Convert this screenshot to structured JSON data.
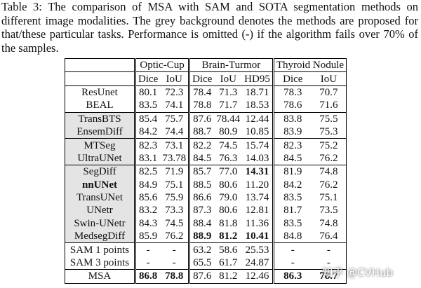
{
  "caption": "Table 3: The comparison of MSA with SAM and SOTA segmentation methods on different image modalities. The grey background denotes the methods are proposed for that/these particular tasks. Performance is omitted (-) if the algorithm fails over 70% of the samples.",
  "table": {
    "groups": [
      "Optic-Cup",
      "Brain-Turmor",
      "Thyroid Nodule"
    ],
    "columns": [
      "Dice",
      "IoU",
      "Dice",
      "IoU",
      "HD95",
      "Dice",
      "IoU"
    ],
    "rows": [
      [
        "ResUnet",
        "80.1",
        "72.3",
        "78.4",
        "71.3",
        "18.71",
        "78.3",
        "70.7"
      ],
      [
        "BEAL",
        "83.5",
        "74.1",
        "78.8",
        "71.7",
        "18.53",
        "78.6",
        "71.6"
      ],
      [
        "TransBTS",
        "85.4",
        "75.7",
        "87.6",
        "78.44",
        "12.44",
        "83.8",
        "75.5"
      ],
      [
        "EnsemDiff",
        "84.2",
        "74.4",
        "88.7",
        "80.9",
        "10.85",
        "83.9",
        "75.3"
      ],
      [
        "MTSeg",
        "82.3",
        "73.1",
        "82.2",
        "74.5",
        "15.74",
        "82.3",
        "75.2"
      ],
      [
        "UltraUNet",
        "83.1",
        "73.78",
        "84.5",
        "76.3",
        "14.03",
        "84.5",
        "76.2"
      ],
      [
        "SegDiff",
        "82.5",
        "71.9",
        "85.7",
        "77.0",
        "14.31",
        "81.9",
        "74.8"
      ],
      [
        "nnUNet",
        "84.9",
        "75.1",
        "88.5",
        "80.6",
        "11.20",
        "84.2",
        "76.2"
      ],
      [
        "TransUNet",
        "85.6",
        "75.9",
        "86.6",
        "79.0",
        "13.74",
        "83.5",
        "75.1"
      ],
      [
        "UNetr",
        "83.2",
        "73.3",
        "87.3",
        "80.6",
        "12.81",
        "81.7",
        "73.5"
      ],
      [
        "Swin-UNetr",
        "84.3",
        "74.5",
        "88.4",
        "81.8",
        "11.36",
        "83.5",
        "74.8"
      ],
      [
        "MedsegDiff",
        "85.9",
        "76.2",
        "88.9",
        "81.2",
        "10.41",
        "84.8",
        "76.4"
      ],
      [
        "SAM 1 points",
        "-",
        "-",
        "63.2",
        "58.6",
        "25.53",
        "-",
        "-"
      ],
      [
        "SAM 3 points",
        "-",
        "-",
        "65.5",
        "61.7",
        "24.87",
        "-",
        "-"
      ],
      [
        "MSA",
        "86.8",
        "78.8",
        "87.6",
        "81.2",
        "12.46",
        "86.3",
        "78.7"
      ]
    ]
  },
  "watermark": "知乎 @CVHub"
}
